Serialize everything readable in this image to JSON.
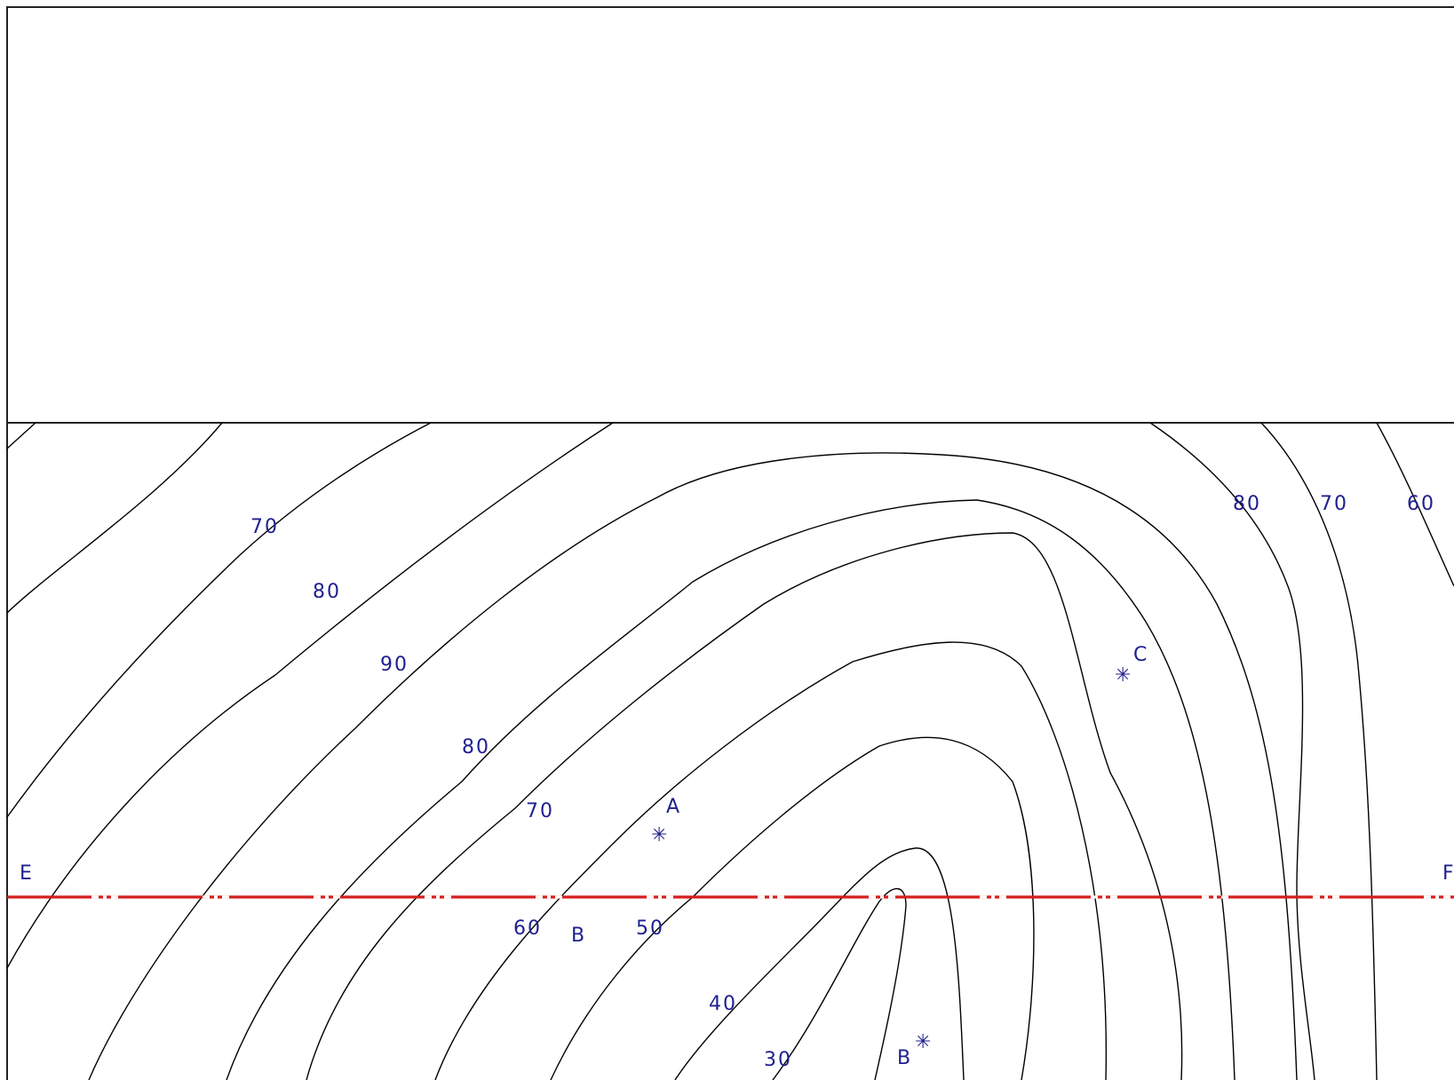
{
  "colors": {
    "frame": "#222222",
    "contour": "#000000",
    "label": "#1f1f8f",
    "section_line": "#d61f1f",
    "section_dash": "#ffffff"
  },
  "points": {
    "A": "A",
    "B": "B",
    "C": "C",
    "E": "E",
    "F": "F"
  },
  "marker_glyph": "✳",
  "contour_labels": {
    "top_left_70": "70",
    "top_left_80": "80",
    "top_left_90": "90",
    "mid_80": "80",
    "mid_70": "70",
    "lower_60": "60",
    "lower_50": "50",
    "lower_40": "40",
    "lower_30": "30",
    "right_80": "80",
    "right_70": "70",
    "right_60": "60"
  },
  "section_line_label": "B"
}
